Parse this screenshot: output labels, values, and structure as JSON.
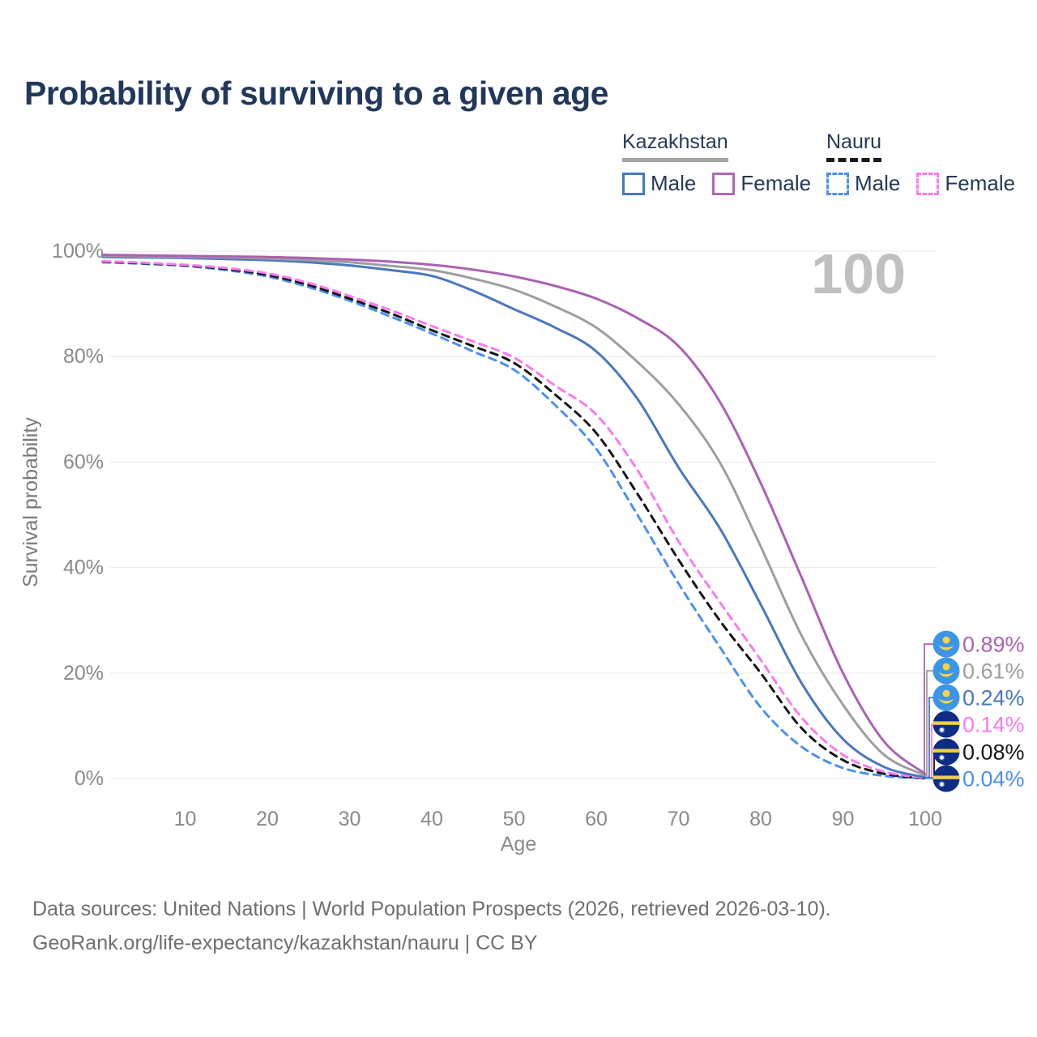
{
  "title": "Probability of surviving to a given age",
  "legend": {
    "groups": [
      {
        "country": "Kazakhstan",
        "line_style": "solid",
        "underline_color": "#a3a3a3",
        "items": [
          {
            "label": "Male",
            "color": "#4a76c2"
          },
          {
            "label": "Female",
            "color": "#b068b8"
          }
        ]
      },
      {
        "country": "Nauru",
        "line_style": "dashed",
        "underline_color": "#1a1a1a",
        "items": [
          {
            "label": "Male",
            "color": "#4a90f2"
          },
          {
            "label": "Female",
            "color": "#fb79ef"
          }
        ]
      }
    ]
  },
  "axes": {
    "x_label": "Age",
    "y_label": "Survival probability",
    "x_ticks": [
      10,
      20,
      30,
      40,
      50,
      60,
      70,
      80,
      90,
      100
    ],
    "y_ticks": [
      {
        "value": 0,
        "label": "0%"
      },
      {
        "value": 20,
        "label": "20%"
      },
      {
        "value": 40,
        "label": "40%"
      },
      {
        "value": 60,
        "label": "60%"
      },
      {
        "value": 80,
        "label": "80%"
      },
      {
        "value": 100,
        "label": "100%"
      }
    ]
  },
  "chart_data": {
    "type": "line",
    "title": "Probability of surviving to a given age",
    "xlabel": "Age",
    "ylabel": "Survival probability",
    "xlim": [
      0,
      100
    ],
    "ylim": [
      0,
      100
    ],
    "grid": true,
    "legend_position": "top-right",
    "watermark": "100",
    "x": [
      0,
      5,
      10,
      15,
      20,
      25,
      30,
      35,
      40,
      45,
      50,
      55,
      60,
      65,
      70,
      75,
      80,
      85,
      90,
      95,
      100
    ],
    "series": [
      {
        "name": "Kazakhstan Female",
        "country": "Kazakhstan",
        "sex": "Female",
        "color": "#ab61b3",
        "dash": false,
        "flag": "kazakhstan",
        "end_label": "0.89%",
        "values": [
          99.3,
          99.2,
          99.1,
          99.0,
          98.9,
          98.7,
          98.4,
          98.0,
          97.4,
          96.5,
          95.2,
          93.4,
          91.0,
          87.3,
          82.0,
          71.5,
          56.0,
          38.0,
          20.0,
          7.0,
          0.89
        ]
      },
      {
        "name": "Kazakhstan Both sexes",
        "country": "Kazakhstan",
        "sex": "All",
        "color": "#9e9e9e",
        "dash": false,
        "flag": "kazakhstan",
        "end_label": "0.61%",
        "values": [
          99.1,
          99.0,
          98.9,
          98.8,
          98.6,
          98.3,
          97.9,
          97.2,
          96.4,
          94.8,
          92.7,
          89.5,
          85.5,
          79.0,
          71.0,
          60.0,
          44.0,
          27.0,
          14.0,
          4.5,
          0.61
        ]
      },
      {
        "name": "Kazakhstan Male",
        "country": "Kazakhstan",
        "sex": "Male",
        "color": "#4a76c2",
        "dash": false,
        "flag": "kazakhstan",
        "end_label": "0.24%",
        "values": [
          98.9,
          98.8,
          98.7,
          98.5,
          98.3,
          97.9,
          97.3,
          96.4,
          95.3,
          92.5,
          89.0,
          85.5,
          81.0,
          72.0,
          59.0,
          47.5,
          33.0,
          18.0,
          7.5,
          2.2,
          0.24
        ]
      },
      {
        "name": "Nauru Female",
        "country": "Nauru",
        "sex": "Female",
        "color": "#fb79ef",
        "dash": true,
        "flag": "nauru",
        "end_label": "0.14%",
        "values": [
          98.1,
          97.8,
          97.4,
          96.8,
          95.8,
          94.0,
          91.5,
          88.8,
          85.8,
          82.9,
          79.8,
          74.5,
          69.0,
          58.5,
          45.0,
          33.5,
          22.5,
          11.5,
          4.5,
          1.3,
          0.14
        ]
      },
      {
        "name": "Nauru Both sexes",
        "country": "Nauru",
        "sex": "All",
        "color": "#161616",
        "dash": true,
        "flag": "nauru",
        "end_label": "0.08%",
        "values": [
          98.0,
          97.7,
          97.3,
          96.6,
          95.5,
          93.6,
          91.0,
          88.2,
          85.0,
          82.0,
          78.8,
          72.8,
          65.5,
          54.0,
          41.5,
          30.0,
          20.0,
          9.5,
          3.5,
          0.9,
          0.08
        ]
      },
      {
        "name": "Nauru Male",
        "country": "Nauru",
        "sex": "Male",
        "color": "#4a90f2",
        "dash": true,
        "flag": "nauru",
        "end_label": "0.04%",
        "values": [
          97.9,
          97.6,
          97.2,
          96.4,
          95.2,
          93.2,
          90.6,
          87.6,
          84.4,
          81.0,
          77.5,
          70.8,
          62.5,
          50.0,
          37.0,
          25.0,
          13.5,
          6.0,
          2.0,
          0.5,
          0.04
        ]
      }
    ],
    "flag_colors": {
      "kazakhstan_blue": "#3c96e8",
      "kazakhstan_gold": "#ffd23f",
      "nauru_navy": "#0c2c85",
      "nauru_gold": "#f2cf48",
      "nauru_star": "#ffffff"
    }
  },
  "footer": {
    "line1": "Data sources: United Nations | World Population Prospects (2026, retrieved 2026-03-10).",
    "line2": "GeoRank.org/life-expectancy/kazakhstan/nauru | CC BY"
  }
}
